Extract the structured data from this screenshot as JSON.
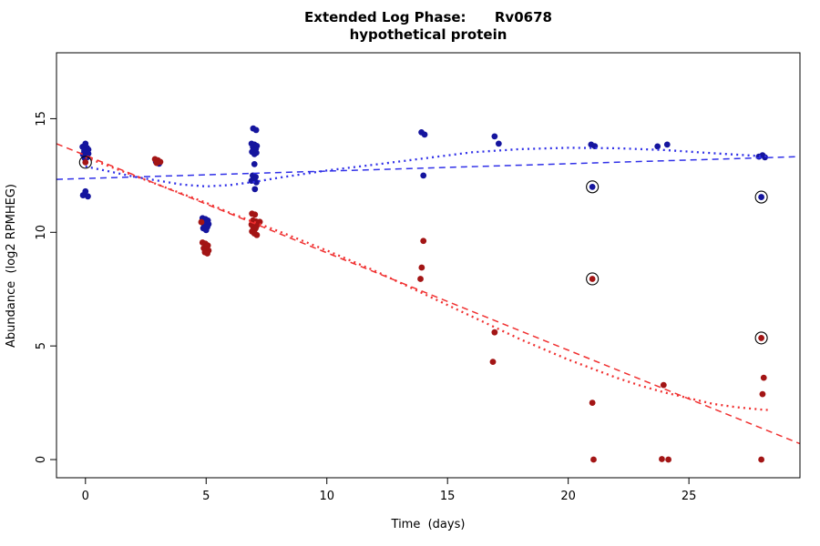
{
  "chart_data": {
    "type": "scatter",
    "title": {
      "line1": "Extended Log Phase:      Rv0678",
      "line2": "hypothetical protein"
    },
    "xlabel": "Time  (days)",
    "ylabel": "Abundance  (log2 RPMHEG)",
    "axes": {
      "xlim": [
        -1.2,
        29.6
      ],
      "ylim": [
        -0.8,
        17.9
      ],
      "xticks": [
        0,
        5,
        10,
        15,
        20,
        25
      ],
      "yticks": [
        0,
        5,
        10,
        15
      ],
      "grid": false
    },
    "colors": {
      "blue_points": "#15159E",
      "red_points": "#A31515",
      "blue_line": "#3030E8",
      "red_line": "#F03030",
      "outline": "#000000"
    },
    "series": [
      {
        "name": "blue-points",
        "kind": "points",
        "color": "#15159E",
        "points": [
          [
            0,
            13.9
          ],
          [
            -0.12,
            13.76
          ],
          [
            0.06,
            13.72
          ],
          [
            0.12,
            13.64
          ],
          [
            -0.05,
            13.58
          ],
          [
            0.02,
            13.52
          ],
          [
            0.12,
            13.46
          ],
          [
            -0.1,
            13.42
          ],
          [
            0,
            13.36
          ],
          [
            0.07,
            13.3
          ],
          [
            -0.03,
            13.26
          ],
          [
            0,
            11.8
          ],
          [
            -0.1,
            11.63
          ],
          [
            0.1,
            11.58
          ],
          [
            2.92,
            13.1
          ],
          [
            3.05,
            13.02
          ],
          [
            4.85,
            10.62
          ],
          [
            4.97,
            10.58
          ],
          [
            5.07,
            10.52
          ],
          [
            4.9,
            10.45
          ],
          [
            5.0,
            10.42
          ],
          [
            5.1,
            10.36
          ],
          [
            4.93,
            10.3
          ],
          [
            5.05,
            10.24
          ],
          [
            4.88,
            10.18
          ],
          [
            5.0,
            10.1
          ],
          [
            6.95,
            14.57
          ],
          [
            7.07,
            14.5
          ],
          [
            6.88,
            13.9
          ],
          [
            7.0,
            13.86
          ],
          [
            7.1,
            13.8
          ],
          [
            6.94,
            13.74
          ],
          [
            7.06,
            13.68
          ],
          [
            6.98,
            13.6
          ],
          [
            6.9,
            13.54
          ],
          [
            7.08,
            13.5
          ],
          [
            7.0,
            13.44
          ],
          [
            7.0,
            13.0
          ],
          [
            6.93,
            12.5
          ],
          [
            7.05,
            12.44
          ],
          [
            6.98,
            12.35
          ],
          [
            6.88,
            12.27
          ],
          [
            7.08,
            12.2
          ],
          [
            7.02,
            11.9
          ],
          [
            13.92,
            14.4
          ],
          [
            14.05,
            14.3
          ],
          [
            14.0,
            12.5
          ],
          [
            16.95,
            14.22
          ],
          [
            17.12,
            13.9
          ],
          [
            20.95,
            13.86
          ],
          [
            21.1,
            13.79
          ],
          [
            23.7,
            13.78
          ],
          [
            24.1,
            13.86
          ],
          [
            27.9,
            13.33
          ],
          [
            28.05,
            13.39
          ],
          [
            28.15,
            13.3
          ]
        ]
      },
      {
        "name": "red-points",
        "kind": "points",
        "color": "#A31515",
        "points": [
          [
            2.88,
            13.22
          ],
          [
            3.0,
            13.17
          ],
          [
            3.1,
            13.1
          ],
          [
            2.95,
            13.05
          ],
          [
            4.8,
            10.45
          ],
          [
            4.85,
            9.55
          ],
          [
            4.97,
            9.5
          ],
          [
            5.07,
            9.42
          ],
          [
            4.9,
            9.3
          ],
          [
            5.0,
            9.26
          ],
          [
            5.1,
            9.2
          ],
          [
            4.95,
            9.12
          ],
          [
            5.05,
            9.07
          ],
          [
            6.9,
            10.82
          ],
          [
            7.02,
            10.78
          ],
          [
            7.22,
            10.46
          ],
          [
            6.94,
            10.52
          ],
          [
            7.06,
            10.48
          ],
          [
            6.98,
            10.4
          ],
          [
            6.88,
            10.34
          ],
          [
            7.1,
            10.3
          ],
          [
            6.95,
            10.24
          ],
          [
            7.05,
            10.18
          ],
          [
            7.0,
            10.1
          ],
          [
            6.9,
            10.04
          ],
          [
            7.0,
            9.95
          ],
          [
            7.1,
            9.88
          ],
          [
            14.0,
            9.62
          ],
          [
            13.93,
            8.45
          ],
          [
            13.88,
            7.95
          ],
          [
            16.95,
            5.6
          ],
          [
            16.88,
            4.3
          ],
          [
            21.0,
            2.5
          ],
          [
            21.05,
            0.0
          ],
          [
            23.95,
            3.28
          ],
          [
            23.88,
            0.02
          ],
          [
            24.15,
            0.0
          ],
          [
            28.1,
            3.6
          ],
          [
            28.05,
            2.88
          ],
          [
            28.0,
            0.0
          ]
        ]
      },
      {
        "name": "blue-linear-fit",
        "kind": "line",
        "style": "dashed",
        "width": 1.5,
        "color": "#3030E8",
        "points": [
          [
            -1.2,
            12.33
          ],
          [
            29.6,
            13.33
          ]
        ]
      },
      {
        "name": "red-linear-fit",
        "kind": "line",
        "style": "dashed",
        "width": 1.5,
        "color": "#F03030",
        "points": [
          [
            -1.2,
            13.9
          ],
          [
            29.6,
            0.7
          ]
        ]
      },
      {
        "name": "blue-smooth-fit",
        "kind": "line",
        "style": "dotted",
        "width": 2.3,
        "color": "#3030E8",
        "points": [
          [
            0,
            12.9
          ],
          [
            2,
            12.45
          ],
          [
            4,
            12.1
          ],
          [
            5,
            12.02
          ],
          [
            6,
            12.08
          ],
          [
            7,
            12.22
          ],
          [
            8,
            12.4
          ],
          [
            10,
            12.72
          ],
          [
            12,
            12.98
          ],
          [
            14,
            13.25
          ],
          [
            16,
            13.52
          ],
          [
            18,
            13.66
          ],
          [
            20,
            13.72
          ],
          [
            22,
            13.7
          ],
          [
            24,
            13.62
          ],
          [
            26,
            13.48
          ],
          [
            28,
            13.35
          ],
          [
            28.3,
            13.34
          ]
        ]
      },
      {
        "name": "red-smooth-fit",
        "kind": "line",
        "style": "dotted",
        "width": 2.3,
        "color": "#F03030",
        "points": [
          [
            0,
            13.3
          ],
          [
            2,
            12.5
          ],
          [
            4,
            11.7
          ],
          [
            5,
            11.3
          ],
          [
            6,
            10.85
          ],
          [
            7,
            10.45
          ],
          [
            8,
            10.05
          ],
          [
            10,
            9.2
          ],
          [
            12,
            8.3
          ],
          [
            14,
            7.3
          ],
          [
            16,
            6.3
          ],
          [
            17,
            5.8
          ],
          [
            18,
            5.3
          ],
          [
            19,
            4.85
          ],
          [
            20,
            4.4
          ],
          [
            21,
            4.0
          ],
          [
            22,
            3.6
          ],
          [
            23,
            3.25
          ],
          [
            24,
            2.95
          ],
          [
            25,
            2.7
          ],
          [
            26,
            2.45
          ],
          [
            27,
            2.3
          ],
          [
            28,
            2.2
          ],
          [
            28.3,
            2.18
          ]
        ]
      }
    ],
    "outlined_points": [
      {
        "x": 0.0,
        "y": 13.08,
        "color": "#A31515"
      },
      {
        "x": 21.0,
        "y": 12.0,
        "color": "#15159E"
      },
      {
        "x": 21.0,
        "y": 7.95,
        "color": "#A31515"
      },
      {
        "x": 28.0,
        "y": 11.55,
        "color": "#15159E"
      },
      {
        "x": 28.0,
        "y": 5.35,
        "color": "#A31515"
      }
    ]
  }
}
